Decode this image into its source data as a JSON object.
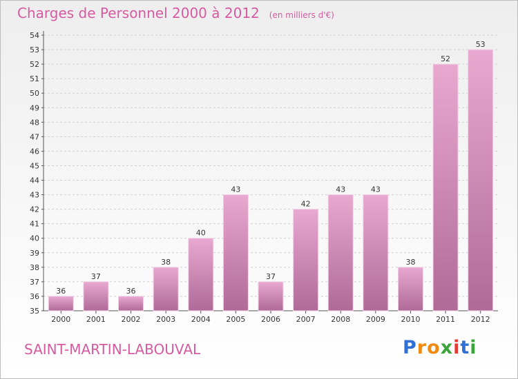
{
  "title": "Charges de Personnel 2000 à 2012",
  "subtitle": "(en milliers d'€)",
  "commune": "SAINT-MARTIN-LABOUVAL",
  "brand": {
    "text": "Proxiti",
    "letters": [
      "P",
      "r",
      "o",
      "x",
      "i",
      "t",
      "i"
    ],
    "colors": [
      "#2f6fd6",
      "#f08a12",
      "#f08a12",
      "#3aa63a",
      "#e53935",
      "#2f6fd6",
      "#3aa63a"
    ]
  },
  "colors": {
    "title": "#d65aa0",
    "bar_top": "#e8a8d0",
    "bar_bottom": "#b06a98",
    "grid": "#cfcfcf"
  },
  "chart_data": {
    "type": "bar",
    "categories": [
      "2000",
      "2001",
      "2002",
      "2003",
      "2004",
      "2005",
      "2006",
      "2007",
      "2008",
      "2009",
      "2010",
      "2011",
      "2012"
    ],
    "values": [
      36,
      37,
      36,
      38,
      40,
      43,
      37,
      42,
      43,
      43,
      38,
      52,
      53
    ],
    "title": "Charges de Personnel 2000 à 2012",
    "subtitle": "(en milliers d'€)",
    "xlabel": "",
    "ylabel": "",
    "ylim": [
      35,
      54
    ],
    "yticks": [
      35,
      36,
      37,
      38,
      39,
      40,
      41,
      42,
      43,
      44,
      45,
      46,
      47,
      48,
      49,
      50,
      51,
      52,
      53,
      54
    ],
    "grid": true,
    "legend": "none"
  }
}
